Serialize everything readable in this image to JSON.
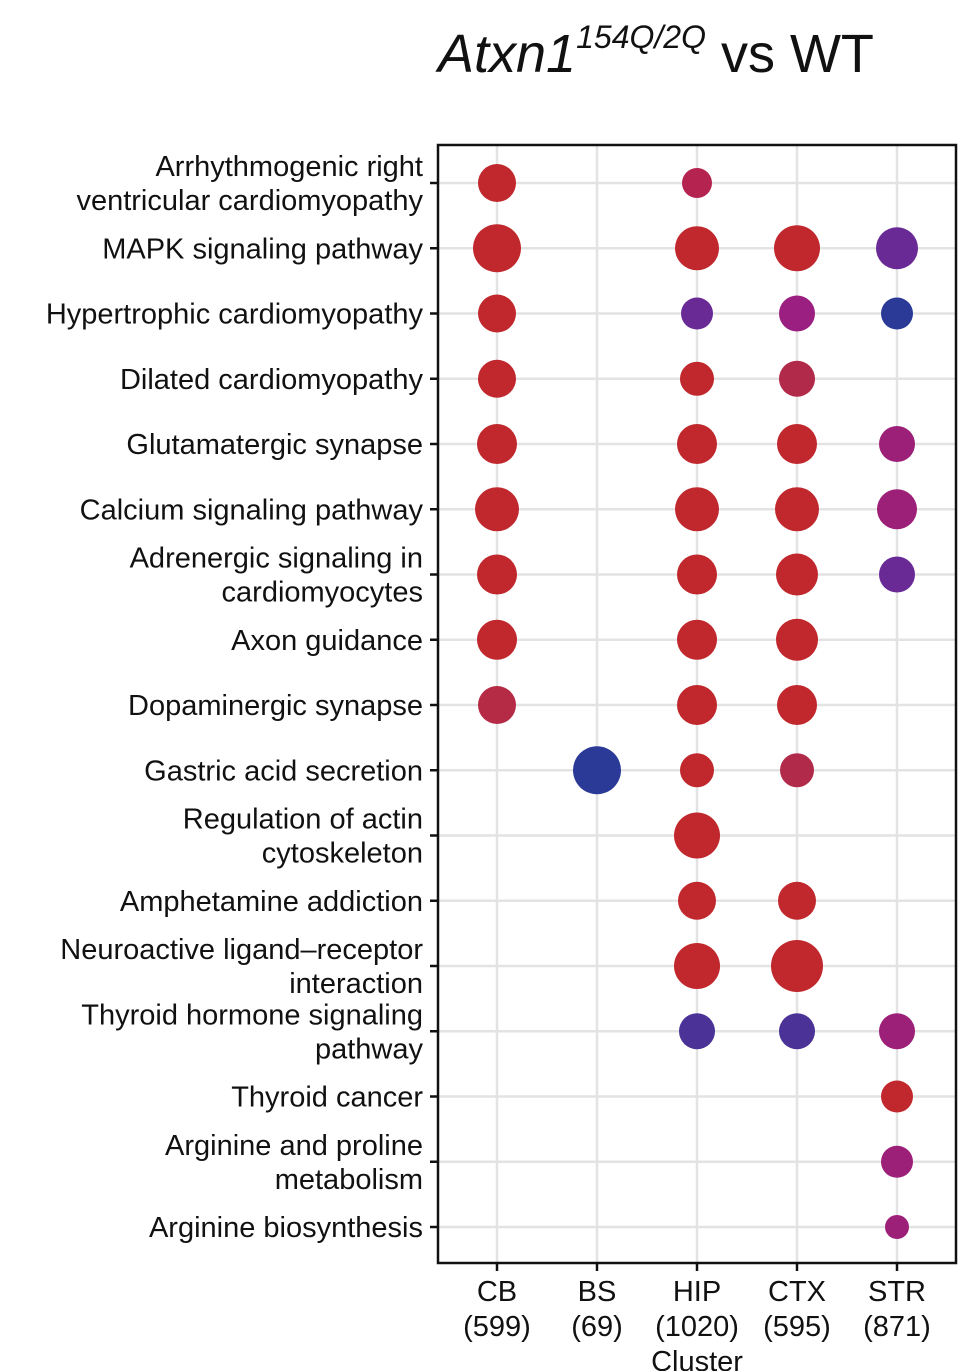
{
  "chart_data": {
    "type": "scatter",
    "title": {
      "italic": "Atxn1",
      "superscript": "154Q/2Q",
      "rest": " vs WT"
    },
    "xlabel": "Cluster",
    "ylabel": "",
    "clusters": [
      {
        "name": "CB",
        "count": "(599)"
      },
      {
        "name": "BS",
        "count": "(69)"
      },
      {
        "name": "HIP",
        "count": "(1020)"
      },
      {
        "name": "CTX",
        "count": "(595)"
      },
      {
        "name": "STR",
        "count": "(871)"
      }
    ],
    "pathways": [
      [
        "Arrhythmogenic right",
        "ventricular cardiomyopathy"
      ],
      [
        "MAPK signaling pathway"
      ],
      [
        "Hypertrophic cardiomyopathy"
      ],
      [
        "Dilated cardiomyopathy"
      ],
      [
        "Glutamatergic synapse"
      ],
      [
        "Calcium signaling pathway"
      ],
      [
        "Adrenergic signaling in",
        "cardiomyocytes"
      ],
      [
        "Axon guidance"
      ],
      [
        "Dopaminergic synapse"
      ],
      [
        "Gastric acid secretion"
      ],
      [
        "Regulation of actin",
        "cytoskeleton"
      ],
      [
        "Amphetamine addiction"
      ],
      [
        "Neuroactive ligand–receptor",
        "interaction"
      ],
      [
        "Thyroid hormone signaling",
        "pathway"
      ],
      [
        "Thyroid cancer"
      ],
      [
        "Arginine and proline",
        "metabolism"
      ],
      [
        "Arginine biosynthesis"
      ]
    ],
    "points": [
      {
        "pathway": 0,
        "cluster": "CB",
        "size": 19,
        "color": "#c0282d"
      },
      {
        "pathway": 0,
        "cluster": "HIP",
        "size": 15,
        "color": "#b52450"
      },
      {
        "pathway": 1,
        "cluster": "CB",
        "size": 24,
        "color": "#c0282d"
      },
      {
        "pathway": 1,
        "cluster": "HIP",
        "size": 22,
        "color": "#c0282d"
      },
      {
        "pathway": 1,
        "cluster": "CTX",
        "size": 23,
        "color": "#c0282d"
      },
      {
        "pathway": 1,
        "cluster": "STR",
        "size": 21,
        "color": "#6a2a96"
      },
      {
        "pathway": 2,
        "cluster": "CB",
        "size": 19,
        "color": "#c0282d"
      },
      {
        "pathway": 2,
        "cluster": "HIP",
        "size": 16,
        "color": "#6a2a96"
      },
      {
        "pathway": 2,
        "cluster": "CTX",
        "size": 18,
        "color": "#9a1f80"
      },
      {
        "pathway": 2,
        "cluster": "STR",
        "size": 16,
        "color": "#2b3a96"
      },
      {
        "pathway": 3,
        "cluster": "CB",
        "size": 19,
        "color": "#c0282d"
      },
      {
        "pathway": 3,
        "cluster": "HIP",
        "size": 17,
        "color": "#c0282d"
      },
      {
        "pathway": 3,
        "cluster": "CTX",
        "size": 18,
        "color": "#b22a4a"
      },
      {
        "pathway": 4,
        "cluster": "CB",
        "size": 20,
        "color": "#c0282d"
      },
      {
        "pathway": 4,
        "cluster": "HIP",
        "size": 20,
        "color": "#c0282d"
      },
      {
        "pathway": 4,
        "cluster": "CTX",
        "size": 20,
        "color": "#c0282d"
      },
      {
        "pathway": 4,
        "cluster": "STR",
        "size": 18,
        "color": "#9c1f78"
      },
      {
        "pathway": 5,
        "cluster": "CB",
        "size": 22,
        "color": "#c0282d"
      },
      {
        "pathway": 5,
        "cluster": "HIP",
        "size": 22,
        "color": "#c0282d"
      },
      {
        "pathway": 5,
        "cluster": "CTX",
        "size": 22,
        "color": "#c0282d"
      },
      {
        "pathway": 5,
        "cluster": "STR",
        "size": 20,
        "color": "#9c1f78"
      },
      {
        "pathway": 6,
        "cluster": "CB",
        "size": 20,
        "color": "#c0282d"
      },
      {
        "pathway": 6,
        "cluster": "HIP",
        "size": 20,
        "color": "#c0282d"
      },
      {
        "pathway": 6,
        "cluster": "CTX",
        "size": 21,
        "color": "#c0282d"
      },
      {
        "pathway": 6,
        "cluster": "STR",
        "size": 18,
        "color": "#6a2a96"
      },
      {
        "pathway": 7,
        "cluster": "CB",
        "size": 20,
        "color": "#c0282d"
      },
      {
        "pathway": 7,
        "cluster": "HIP",
        "size": 20,
        "color": "#c0282d"
      },
      {
        "pathway": 7,
        "cluster": "CTX",
        "size": 21,
        "color": "#c0282d"
      },
      {
        "pathway": 8,
        "cluster": "CB",
        "size": 19,
        "color": "#b52a45"
      },
      {
        "pathway": 8,
        "cluster": "HIP",
        "size": 20,
        "color": "#c0282d"
      },
      {
        "pathway": 8,
        "cluster": "CTX",
        "size": 20,
        "color": "#c0282d"
      },
      {
        "pathway": 9,
        "cluster": "BS",
        "size": 24,
        "color": "#2b3a96"
      },
      {
        "pathway": 9,
        "cluster": "HIP",
        "size": 17,
        "color": "#c0282d"
      },
      {
        "pathway": 9,
        "cluster": "CTX",
        "size": 17,
        "color": "#b22a4a"
      },
      {
        "pathway": 10,
        "cluster": "HIP",
        "size": 23,
        "color": "#c0282d"
      },
      {
        "pathway": 11,
        "cluster": "HIP",
        "size": 19,
        "color": "#c0282d"
      },
      {
        "pathway": 11,
        "cluster": "CTX",
        "size": 19,
        "color": "#c0282d"
      },
      {
        "pathway": 12,
        "cluster": "HIP",
        "size": 23,
        "color": "#c0282d"
      },
      {
        "pathway": 12,
        "cluster": "CTX",
        "size": 26,
        "color": "#c0282d"
      },
      {
        "pathway": 13,
        "cluster": "HIP",
        "size": 18,
        "color": "#4a3296"
      },
      {
        "pathway": 13,
        "cluster": "CTX",
        "size": 18,
        "color": "#4a3296"
      },
      {
        "pathway": 13,
        "cluster": "STR",
        "size": 18,
        "color": "#9c1f78"
      },
      {
        "pathway": 14,
        "cluster": "STR",
        "size": 16,
        "color": "#c0282d"
      },
      {
        "pathway": 15,
        "cluster": "STR",
        "size": 16,
        "color": "#9c1f78"
      },
      {
        "pathway": 16,
        "cluster": "STR",
        "size": 12,
        "color": "#9c1f78"
      }
    ],
    "grid": true,
    "legend": "none",
    "colors": {
      "red": "#c0282d",
      "crimson": "#b52a45",
      "magenta": "#9c1f78",
      "purple": "#6a2a96",
      "blue": "#2b3a96",
      "grid": "#e3e3e3",
      "axis": "#111111"
    }
  }
}
